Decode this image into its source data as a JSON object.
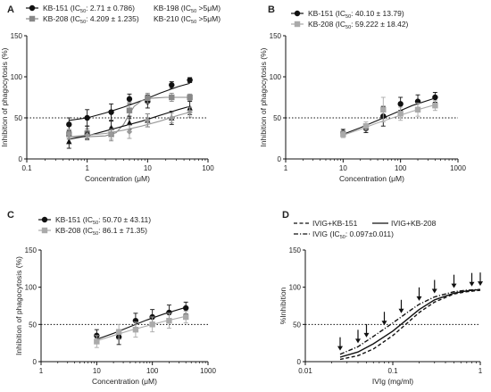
{
  "chart_data": [
    {
      "panel": "A",
      "type": "scatter",
      "xlabel": "Concentration (μM)",
      "ylabel": "Inhibition of phagocytosis (%)",
      "x_scale": "log",
      "xlim": [
        0.1,
        100
      ],
      "ylim": [
        0,
        150
      ],
      "x_ticks": [
        "0.1",
        "1",
        "10",
        "100"
      ],
      "y_ticks": [
        "0",
        "50",
        "100",
        "150"
      ],
      "reference_line": 50,
      "legend": [
        {
          "series": 0,
          "label": "KB-151 (IC",
          "sub": "50",
          "rest": ": 2.71 ± 0.786)"
        },
        {
          "series": 1,
          "label": "KB-208 (IC",
          "sub": "50",
          "rest": ": 4.209 ± 1.235)"
        },
        {
          "series": 2,
          "label": "KB-198 (IC",
          "sub": "50",
          "rest": " >5μM)"
        },
        {
          "series": 3,
          "label": "KB-210 (IC",
          "sub": "50",
          "rest": " >5μM)"
        }
      ],
      "series": [
        {
          "name": "KB-151",
          "marker": "circle",
          "color": "#111111",
          "x": [
            0.5,
            1,
            2.5,
            5,
            10,
            25,
            50
          ],
          "y": [
            42,
            50,
            57,
            73,
            70,
            90,
            96
          ],
          "err": [
            8,
            10,
            10,
            6,
            8,
            4,
            3
          ],
          "curve_x": [
            0.5,
            1,
            2,
            4,
            8,
            16,
            32,
            50
          ],
          "curve_y": [
            47,
            50,
            56,
            63,
            71,
            80,
            88,
            92
          ]
        },
        {
          "name": "KB-208",
          "marker": "square",
          "color": "#888888",
          "x": [
            0.5,
            1,
            2.5,
            5,
            10,
            25,
            50
          ],
          "y": [
            30,
            31,
            30,
            59,
            74,
            75,
            75
          ],
          "err": [
            5,
            6,
            8,
            10,
            6,
            5,
            4
          ],
          "curve_x": [
            0.5,
            1,
            2,
            3,
            4,
            5,
            6,
            8,
            12,
            20,
            50
          ],
          "curve_y": [
            27,
            27,
            28,
            32,
            42,
            55,
            64,
            71,
            74,
            75,
            75
          ]
        },
        {
          "name": "KB-198",
          "marker": "triangle",
          "color": "#111111",
          "x": [
            0.5,
            1,
            2.5,
            5,
            10,
            25,
            50
          ],
          "y": [
            21,
            32,
            38,
            44,
            47,
            50,
            62
          ],
          "err": [
            8,
            8,
            8,
            8,
            8,
            8,
            8
          ],
          "curve_x": [
            0.5,
            1,
            2,
            4,
            8,
            16,
            32,
            50
          ],
          "curve_y": [
            24,
            28,
            34,
            40,
            46,
            53,
            60,
            64
          ]
        },
        {
          "name": "KB-210",
          "marker": "diamond",
          "color": "#999999",
          "x": [
            0.5,
            1,
            2.5,
            5,
            10,
            25,
            50
          ],
          "y": [
            30,
            29,
            30,
            33,
            47,
            50,
            57
          ],
          "err": [
            6,
            6,
            6,
            8,
            8,
            6,
            6
          ],
          "curve_x": [
            0.5,
            1,
            2,
            4,
            8,
            16,
            32,
            50
          ],
          "curve_y": [
            27,
            29,
            31,
            35,
            40,
            46,
            53,
            57
          ]
        }
      ]
    },
    {
      "panel": "B",
      "type": "scatter",
      "xlabel": "Concentration (μM)",
      "ylabel": "Inhibition of phagocytosis (%)",
      "x_scale": "log",
      "xlim": [
        1,
        1000
      ],
      "ylim": [
        0,
        150
      ],
      "x_ticks": [
        "1",
        "10",
        "100",
        "1000"
      ],
      "y_ticks": [
        "0",
        "50",
        "100",
        "150"
      ],
      "reference_line": 50,
      "legend": [
        {
          "series": 0,
          "label": "KB-151 (IC",
          "sub": "50",
          "rest": ": 40.10 ± 13.79)"
        },
        {
          "series": 1,
          "label": "KB-208 (IC",
          "sub": "50",
          "rest": ": 59.222 ± 18.42)"
        }
      ],
      "series": [
        {
          "name": "KB-151",
          "marker": "circle",
          "color": "#111111",
          "x": [
            10,
            25,
            50,
            100,
            200,
            400
          ],
          "y": [
            32,
            37,
            52,
            67,
            70,
            75
          ],
          "err": [
            4,
            5,
            12,
            8,
            8,
            6
          ],
          "curve_x": [
            10,
            20,
            40,
            80,
            160,
            400
          ],
          "curve_y": [
            30,
            38,
            47,
            56,
            65,
            74
          ]
        },
        {
          "name": "KB-208",
          "marker": "square",
          "color": "#aaaaaa",
          "x": [
            10,
            25,
            50,
            100,
            200,
            400
          ],
          "y": [
            30,
            40,
            60,
            55,
            60,
            65
          ],
          "err": [
            4,
            5,
            15,
            8,
            8,
            6
          ],
          "curve_x": [
            10,
            20,
            40,
            80,
            160,
            400
          ],
          "curve_y": [
            29,
            36,
            44,
            51,
            58,
            66
          ]
        }
      ]
    },
    {
      "panel": "C",
      "type": "scatter",
      "xlabel": "Concentration (μM)",
      "ylabel": "Inhibition of phagocytosis (%)",
      "x_scale": "log",
      "xlim": [
        1,
        1000
      ],
      "ylim": [
        0,
        150
      ],
      "x_ticks": [
        "1",
        "10",
        "100",
        "1000"
      ],
      "y_ticks": [
        "0",
        "50",
        "100",
        "150"
      ],
      "reference_line": 50,
      "legend": [
        {
          "series": 0,
          "label": "KB-151 (IC",
          "sub": "50",
          "rest": ": 50.70 ± 43.11)"
        },
        {
          "series": 1,
          "label": "KB-208 (IC",
          "sub": "50",
          "rest": ": 86.1 ± 71.35)"
        }
      ],
      "series": [
        {
          "name": "KB-151",
          "marker": "circle",
          "color": "#111111",
          "x": [
            10,
            25,
            50,
            100,
            200,
            400
          ],
          "y": [
            35,
            33,
            55,
            60,
            66,
            72
          ],
          "err": [
            8,
            10,
            10,
            10,
            10,
            8
          ],
          "curve_x": [
            10,
            20,
            40,
            80,
            160,
            400
          ],
          "curve_y": [
            30,
            38,
            47,
            56,
            64,
            73
          ]
        },
        {
          "name": "KB-208",
          "marker": "square",
          "color": "#aaaaaa",
          "x": [
            10,
            25,
            50,
            100,
            200,
            400
          ],
          "y": [
            27,
            40,
            43,
            50,
            55,
            60
          ],
          "err": [
            8,
            10,
            10,
            10,
            10,
            8
          ],
          "curve_x": [
            10,
            20,
            40,
            80,
            160,
            400
          ],
          "curve_y": [
            28,
            35,
            42,
            48,
            54,
            61
          ]
        }
      ]
    },
    {
      "panel": "D",
      "type": "line",
      "xlabel": "IVIg (mg/ml)",
      "ylabel": "%Inhibition",
      "x_scale": "log",
      "xlim": [
        0.01,
        1
      ],
      "ylim": [
        0,
        150
      ],
      "x_ticks": [
        "0.01",
        "0.1",
        "1"
      ],
      "y_ticks": [
        "0",
        "50",
        "100",
        "150"
      ],
      "reference_line": 50,
      "legend": [
        {
          "series": 0,
          "label": "IVIG+KB-151",
          "sub": "",
          "rest": ""
        },
        {
          "series": 1,
          "label": "IVIG (IC",
          "sub": "50",
          "rest": ": 0.097±0.011)"
        },
        {
          "series": 2,
          "label": "IVIG+KB-208",
          "sub": "",
          "rest": ""
        }
      ],
      "arrows_x": [
        0.025,
        0.04,
        0.05,
        0.08,
        0.125,
        0.2,
        0.3,
        0.5,
        0.8,
        1
      ],
      "series": [
        {
          "name": "IVIG+KB-151",
          "style": "dashed",
          "color": "#111111",
          "x": [
            0.025,
            0.04,
            0.06,
            0.1,
            0.15,
            0.2,
            0.3,
            0.5,
            0.7,
            1
          ],
          "y": [
            3,
            8,
            17,
            35,
            53,
            66,
            80,
            91,
            94,
            96
          ]
        },
        {
          "name": "IVIG",
          "style": "dashdot",
          "color": "#111111",
          "x": [
            0.025,
            0.04,
            0.06,
            0.1,
            0.15,
            0.2,
            0.3,
            0.5,
            0.7,
            1
          ],
          "y": [
            10,
            20,
            34,
            52,
            67,
            77,
            87,
            94,
            96,
            97
          ]
        },
        {
          "name": "IVIG+KB-208",
          "style": "solid",
          "color": "#111111",
          "x": [
            0.025,
            0.04,
            0.06,
            0.1,
            0.15,
            0.2,
            0.3,
            0.5,
            0.7,
            1
          ],
          "y": [
            6,
            13,
            24,
            41,
            58,
            70,
            83,
            92,
            95,
            97
          ]
        }
      ]
    }
  ]
}
